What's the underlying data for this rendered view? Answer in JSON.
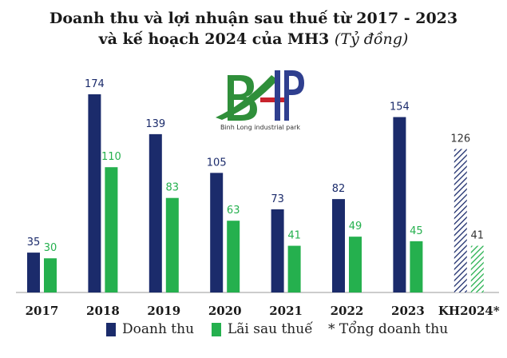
{
  "title_line1": "Doanh thu và lợi nhuận sau thuế từ 2017 - 2023",
  "title_line2": "và kế hoạch 2024 của MH3",
  "title_unit": "(Tỷ đồng)",
  "logo": {
    "text": "BLIP",
    "caption": "Binh Long industrial park"
  },
  "colors": {
    "revenue": "#1b2b6b",
    "profit": "#25b04e",
    "revenue_value_label": "#1b2b6b",
    "profit_value_label": "#25b04e",
    "axis": "#9a9a9a"
  },
  "legend": {
    "revenue": "Doanh thu",
    "profit": "Lãi sau thuế",
    "note": "* Tổng doanh thu"
  },
  "chart_data": {
    "type": "bar",
    "categories": [
      "2017",
      "2018",
      "2019",
      "2020",
      "2021",
      "2022",
      "2023",
      "KH2024*"
    ],
    "series": [
      {
        "name": "Doanh thu",
        "values": [
          35,
          174,
          139,
          105,
          73,
          82,
          154,
          126
        ]
      },
      {
        "name": "Lãi sau thuế",
        "values": [
          30,
          110,
          83,
          63,
          41,
          49,
          45,
          41
        ]
      }
    ],
    "planned_category": "KH2024*",
    "planned_style": "hatched",
    "ylim": [
      0,
      200
    ],
    "grid": false,
    "legend_position": "bottom"
  }
}
